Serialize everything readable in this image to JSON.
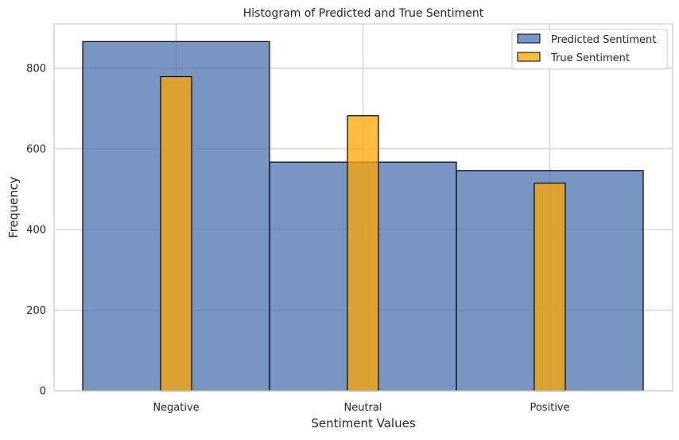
{
  "chart_data": {
    "type": "bar",
    "title": "Histogram of Predicted and True Sentiment",
    "xlabel": "Sentiment Values",
    "ylabel": "Frequency",
    "categories": [
      "Negative",
      "Neutral",
      "Positive"
    ],
    "ylim": [
      0,
      910
    ],
    "yticks": [
      0,
      200,
      400,
      600,
      800
    ],
    "grid": true,
    "legend_position": "top-right",
    "series": [
      {
        "name": "Predicted Sentiment",
        "values": [
          866,
          567,
          546
        ],
        "color": "#4c72b0"
      },
      {
        "name": "True Sentiment",
        "values": [
          779,
          682,
          515
        ],
        "color": "#ffa500"
      }
    ]
  }
}
